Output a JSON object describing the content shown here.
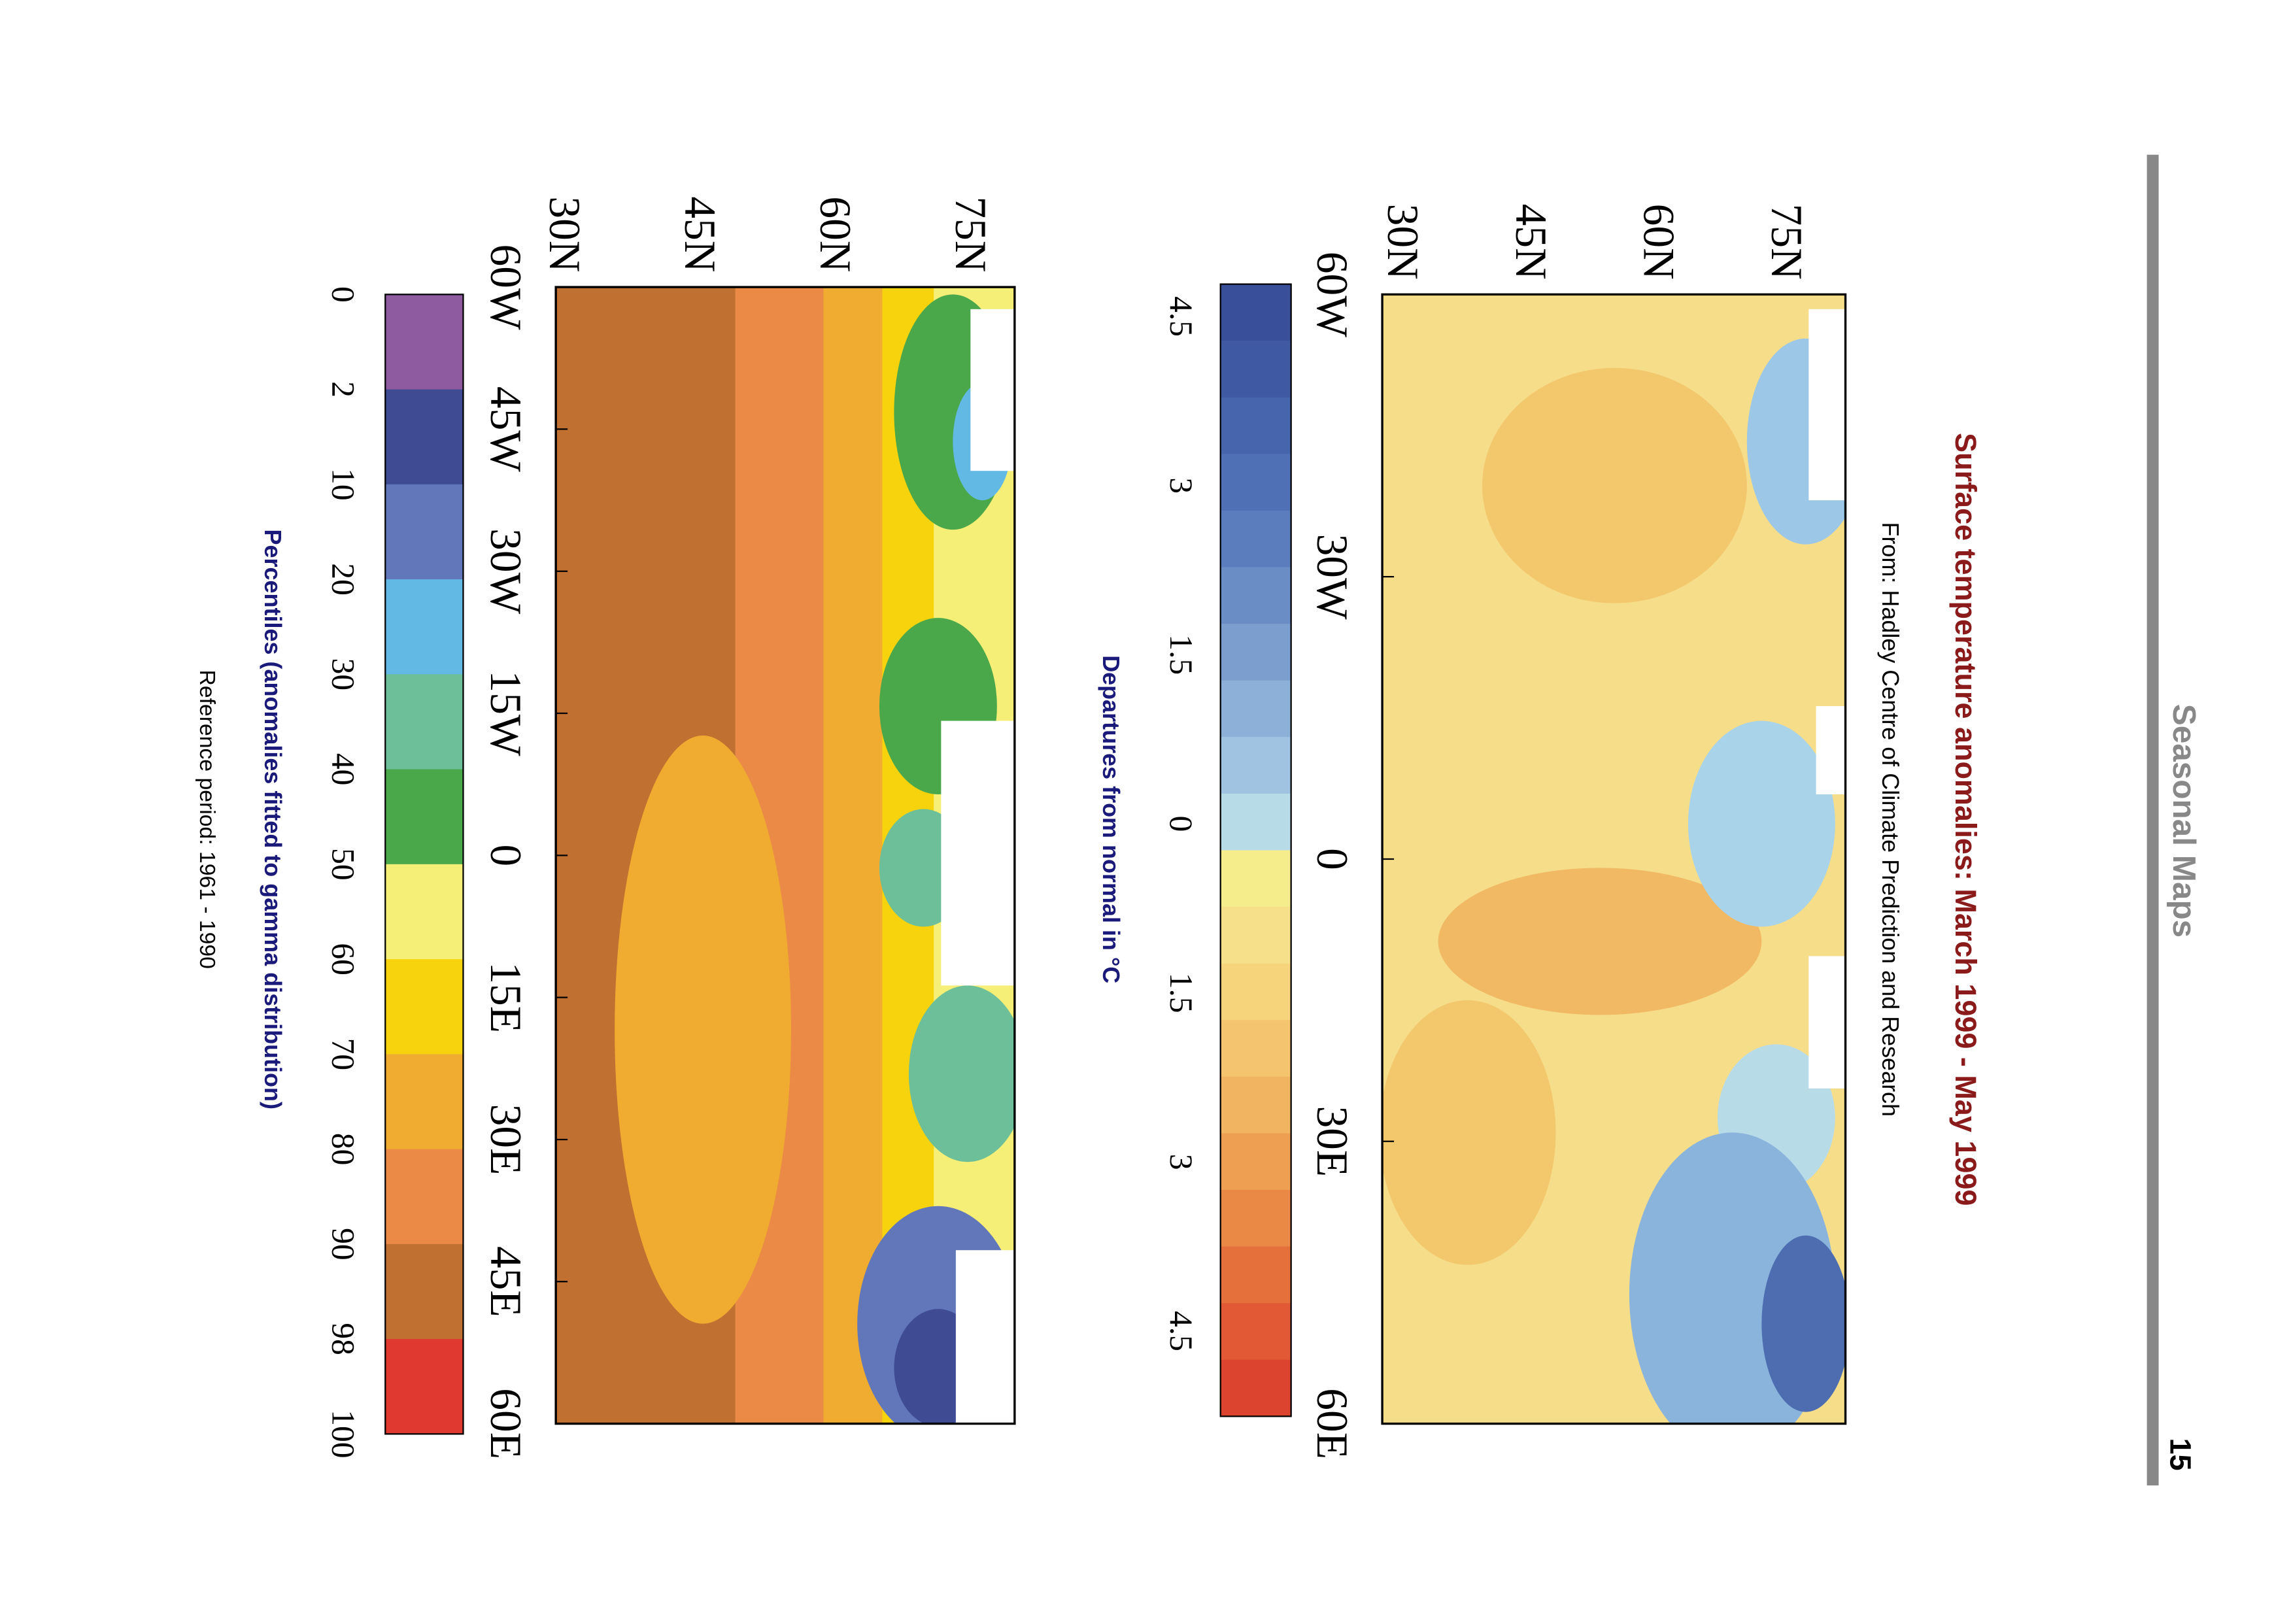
{
  "header": {
    "section": "Seasonal Maps",
    "page": 15
  },
  "title": "Surface temperature anomalies: March 1999 - May 1999",
  "source": "From: Hadley Centre of Climate Prediction and Research",
  "maps": [
    {
      "lat_labels": [
        "75N",
        "60N",
        "45N",
        "30N"
      ],
      "lon_labels": [
        "60W",
        "30W",
        "0",
        "30E",
        "60E"
      ],
      "colorbar_labels": [
        4.5,
        3,
        1.5,
        0,
        1.5,
        3,
        4.5
      ],
      "caption": "Departures from normal in °C"
    },
    {
      "lat_labels": [
        "75N",
        "60N",
        "45N",
        "30N"
      ],
      "lon_labels": [
        "60W",
        "45W",
        "30W",
        "15W",
        "0",
        "15E",
        "30E",
        "45E",
        "60E"
      ],
      "colorbar_labels": [
        0,
        2,
        10,
        20,
        30,
        40,
        50,
        60,
        70,
        80,
        90,
        98,
        100
      ],
      "caption": "Percentiles (anomalies fitted to gamma distribution)",
      "reference": "Reference period: 1961 - 1990"
    }
  ]
}
